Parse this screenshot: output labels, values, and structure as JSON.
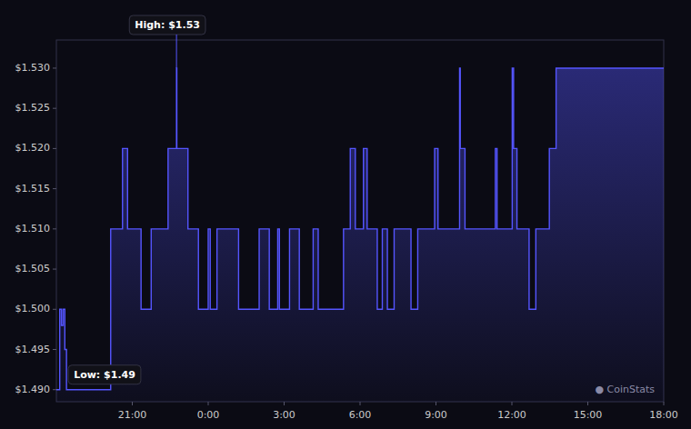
{
  "chart_data": {
    "type": "area",
    "line_style": "step",
    "color": "#5555ff",
    "grid": false,
    "x": [
      0.0,
      0.1,
      0.15,
      0.2,
      0.25,
      0.3,
      1.6,
      1.61,
      1.95,
      1.96,
      2.1,
      2.11,
      2.5,
      2.51,
      2.8,
      2.81,
      3.3,
      3.31,
      3.55,
      3.56,
      3.57,
      3.8,
      3.9,
      4.2,
      4.21,
      4.4,
      4.5,
      4.55,
      4.56,
      4.75,
      4.76,
      5.3,
      5.4,
      6.0,
      6.01,
      6.3,
      6.31,
      6.55,
      6.56,
      6.6,
      6.61,
      6.9,
      6.91,
      7.1,
      7.2,
      7.6,
      7.61,
      7.75,
      7.76,
      8.5,
      8.51,
      8.7,
      8.71,
      8.85,
      8.86,
      9.0,
      9.1,
      9.2,
      9.21,
      9.5,
      9.51,
      9.65,
      9.66,
      9.8,
      9.81,
      10.0,
      10.01,
      10.5,
      10.51,
      10.7,
      10.71,
      11.2,
      11.21,
      11.3,
      11.31,
      11.9,
      11.95,
      11.97,
      12.1,
      12.11,
      13.0,
      13.01,
      13.05,
      13.06,
      13.5,
      13.51,
      13.55,
      13.65,
      14.0,
      14.01,
      14.2,
      14.21,
      14.6,
      14.61,
      14.8,
      14.81,
      18.0
    ],
    "values": [
      1.49,
      1.5,
      1.498,
      1.5,
      1.495,
      1.49,
      1.49,
      1.51,
      1.51,
      1.52,
      1.52,
      1.51,
      1.51,
      1.5,
      1.5,
      1.51,
      1.51,
      1.52,
      1.52,
      1.53,
      1.52,
      1.52,
      1.51,
      1.51,
      1.5,
      1.5,
      1.51,
      1.51,
      1.5,
      1.5,
      1.51,
      1.51,
      1.5,
      1.5,
      1.51,
      1.51,
      1.5,
      1.5,
      1.51,
      1.51,
      1.5,
      1.5,
      1.51,
      1.51,
      1.5,
      1.5,
      1.51,
      1.51,
      1.5,
      1.5,
      1.51,
      1.51,
      1.52,
      1.52,
      1.51,
      1.51,
      1.52,
      1.52,
      1.51,
      1.51,
      1.5,
      1.5,
      1.51,
      1.51,
      1.5,
      1.5,
      1.51,
      1.51,
      1.5,
      1.5,
      1.51,
      1.51,
      1.52,
      1.52,
      1.51,
      1.51,
      1.53,
      1.52,
      1.52,
      1.51,
      1.51,
      1.52,
      1.52,
      1.51,
      1.51,
      1.53,
      1.52,
      1.51,
      1.51,
      1.5,
      1.5,
      1.51,
      1.51,
      1.52,
      1.52,
      1.53,
      1.53
    ],
    "xlim": [
      0,
      18
    ],
    "xticks": [
      {
        "value": 2.25,
        "label": "21:00"
      },
      {
        "value": 4.5,
        "label": "0:00"
      },
      {
        "value": 6.75,
        "label": "3:00"
      },
      {
        "value": 9.0,
        "label": "6:00"
      },
      {
        "value": 11.25,
        "label": "9:00"
      },
      {
        "value": 13.5,
        "label": "12:00"
      },
      {
        "value": 15.75,
        "label": "15:00"
      },
      {
        "value": 18.0,
        "label": "18:00"
      }
    ],
    "ylim": [
      1.4885,
      1.5335
    ],
    "yticks": [
      {
        "value": 1.49,
        "label": "$1.490"
      },
      {
        "value": 1.495,
        "label": "$1.495"
      },
      {
        "value": 1.5,
        "label": "$1.500"
      },
      {
        "value": 1.505,
        "label": "$1.505"
      },
      {
        "value": 1.51,
        "label": "$1.510"
      },
      {
        "value": 1.515,
        "label": "$1.515"
      },
      {
        "value": 1.52,
        "label": "$1.520"
      },
      {
        "value": 1.525,
        "label": "$1.525"
      },
      {
        "value": 1.53,
        "label": "$1.530"
      }
    ],
    "annotations": [
      {
        "text": "High: $1.53",
        "x": 3.56,
        "y": 1.53
      },
      {
        "text": "Low: $1.49",
        "x": 0.3,
        "y": 1.49
      },
      {
        "text": "● CoinStats"
      }
    ]
  }
}
